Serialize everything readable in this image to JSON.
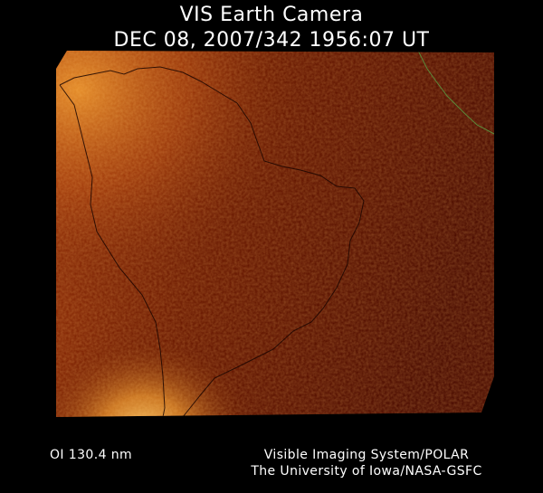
{
  "header": {
    "title": "VIS Earth Camera",
    "datetime": "DEC 08, 2007/342 1956:07 UT"
  },
  "footer": {
    "band": "OI  130.4 nm",
    "credit_line1": "Visible Imaging System/POLAR",
    "credit_line2": "The University of Iowa/NASA-GSFC"
  },
  "colors": {
    "background": "#000000",
    "image_dark": "#4a0b00",
    "image_bright": "#f0a030",
    "coastline": "#1a0500",
    "coastline_alt": "#5a8a3a",
    "text": "#ffffff"
  }
}
